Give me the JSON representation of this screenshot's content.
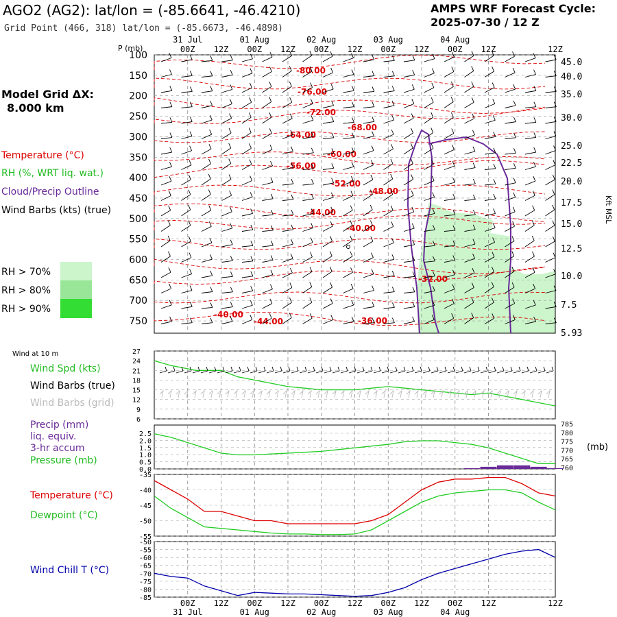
{
  "header": {
    "station": "AGO2 (AG2):  lat/lon = (-85.6641, -46.4210)",
    "grid_point": "Grid Point (466, 318) lat/lon = (-85.6673, -46.4898)",
    "cycle_label": "AMPS WRF Forecast Cycle:",
    "cycle_value": "2025-07-30 / 12  Z"
  },
  "sidebar": {
    "model_grid_label": "Model Grid ΔX:",
    "model_grid_value": "8.000 km",
    "legend_temperature": "Temperature (°C)",
    "legend_rh": "RH (%, WRT liq. wat.)",
    "legend_cloud": "Cloud/Precip Outline",
    "legend_wind": "Wind Barbs (kts) (true)",
    "rh70": "RH > 70%",
    "rh80": "RH > 80%",
    "rh90": "RH > 90%"
  },
  "colors": {
    "temperature": "#dd0000",
    "rh": "#22cc22",
    "cloud": "#6a2a9a",
    "wind": "#000000",
    "grid_barbs": "#bbbbbb",
    "windchill": "#0000aa",
    "rh70": "#ccf5cc",
    "rh80": "#99e699",
    "rh90": "#33dd33"
  },
  "time_axis": {
    "ticks": [
      "00Z",
      "12Z",
      "00Z",
      "12Z",
      "00Z",
      "12Z",
      "00Z",
      "12Z",
      "00Z",
      "12Z"
    ],
    "dates": [
      "31 Jul",
      "01 Aug",
      "02 Aug",
      "03 Aug",
      "04 Aug"
    ],
    "lead_12z_label": "12Z"
  },
  "chart_data": [
    {
      "type": "contour",
      "name": "cross-section",
      "ylabel_left": "P (mb)",
      "ylabel_right": "Kft MSL",
      "pressure_ticks": [
        "100",
        "150",
        "200",
        "250",
        "300",
        "350",
        "400",
        "450",
        "500",
        "550",
        "600",
        "650",
        "700",
        "750"
      ],
      "height_ticks": [
        "45.0",
        "40.0",
        "35.0",
        "30.0",
        "25.0",
        "22.5",
        "20.0",
        "17.5",
        "15.0",
        "12.5",
        "10.0",
        "7.5",
        "5.93"
      ],
      "ylim_mb": [
        100,
        780
      ],
      "temperature_contour_labels": [
        "-80.00",
        "-76.00",
        "-72.00",
        "-68.00",
        "-64.00",
        "-60.00",
        "-56.00",
        "-52.00",
        "-48.00",
        "-44.00",
        "-40.00",
        "-32.00",
        "-40.00",
        "-44.00",
        "-36.00"
      ]
    },
    {
      "type": "line",
      "name": "wind-at-10m",
      "title": "Wind at 10 m",
      "series_labels": [
        "Wind Spd (kts)",
        "Wind Barbs (true)",
        "Wind Barbs (grid)"
      ],
      "yticks": [
        "27",
        "24",
        "21",
        "18",
        "15",
        "12",
        "9",
        "6"
      ],
      "ylim": [
        6,
        27
      ],
      "x_hours": [
        0,
        6,
        12,
        15,
        18,
        24,
        30,
        36,
        42,
        48,
        54,
        60,
        66,
        72,
        78,
        84,
        90,
        96,
        102,
        108,
        114,
        120,
        126,
        132,
        138,
        144
      ],
      "wind_speed": [
        24,
        22.5,
        21.5,
        21,
        21,
        21,
        19,
        18,
        17,
        16,
        15.5,
        15,
        15,
        15,
        15.5,
        16,
        15.5,
        15,
        14.5,
        14,
        13.5,
        14,
        13,
        12,
        11,
        10
      ]
    },
    {
      "type": "line",
      "name": "precip-pressure",
      "series_labels": [
        "Precip (mm)",
        "liq. equiv.",
        "3-hr accum",
        "Pressure (mb)"
      ],
      "yticks_left": [
        "2.5",
        "2.0",
        "1.5",
        "1.0",
        "0.5",
        "0.0"
      ],
      "yticks_right": [
        "785",
        "780",
        "775",
        "770",
        "765",
        "760"
      ],
      "ylabel_right": "(mb)",
      "ylim_left": [
        0,
        2.5
      ],
      "ylim_right": [
        760,
        785
      ],
      "x_hours": [
        0,
        6,
        12,
        18,
        24,
        30,
        36,
        42,
        48,
        54,
        60,
        66,
        72,
        78,
        84,
        90,
        96,
        102,
        108,
        114,
        120,
        126,
        132,
        138,
        144
      ],
      "pressure": [
        780,
        778,
        775,
        772,
        769,
        768,
        768,
        768.5,
        769,
        769.5,
        770,
        771,
        772,
        773,
        774,
        775.5,
        776,
        776,
        775,
        774,
        772,
        769,
        766,
        763,
        763
      ],
      "precip": [
        0,
        0,
        0,
        0,
        0,
        0,
        0,
        0,
        0,
        0,
        0,
        0,
        0,
        0,
        0,
        0,
        0,
        0,
        0,
        0.05,
        0.15,
        0.25,
        0.25,
        0.15,
        0.05
      ]
    },
    {
      "type": "line",
      "name": "temperature-dewpoint",
      "series_labels": [
        "Temperature (°C)",
        "Dewpoint (°C)"
      ],
      "yticks": [
        "-35",
        "-40",
        "-45",
        "-50",
        "-55"
      ],
      "ylim": [
        -55,
        -35
      ],
      "x_hours": [
        0,
        6,
        12,
        18,
        24,
        30,
        36,
        42,
        48,
        54,
        60,
        66,
        72,
        78,
        84,
        90,
        96,
        102,
        108,
        114,
        120,
        126,
        132,
        138,
        144
      ],
      "temperature": [
        -37,
        -40,
        -43,
        -47,
        -47,
        -48.5,
        -50,
        -50,
        -51,
        -51,
        -51,
        -51,
        -51,
        -50,
        -48,
        -44,
        -40,
        -37.5,
        -36.5,
        -36.5,
        -36,
        -36,
        -38,
        -41,
        -42
      ],
      "dewpoint": [
        -42,
        -46,
        -49,
        -52,
        -52.5,
        -53,
        -53.5,
        -54,
        -54.3,
        -54.3,
        -54.5,
        -54.5,
        -54.3,
        -53,
        -50,
        -47,
        -44,
        -42,
        -41,
        -40.5,
        -40,
        -40,
        -41,
        -44,
        -46.5
      ]
    },
    {
      "type": "line",
      "name": "wind-chill",
      "series_labels": [
        "Wind Chill T (°C)"
      ],
      "yticks": [
        "-50",
        "-55",
        "-60",
        "-65",
        "-70",
        "-75",
        "-80",
        "-85"
      ],
      "ylim": [
        -85,
        -50
      ],
      "x_hours": [
        0,
        6,
        12,
        18,
        24,
        30,
        36,
        42,
        48,
        54,
        60,
        66,
        72,
        78,
        84,
        90,
        96,
        102,
        108,
        114,
        120,
        126,
        132,
        138,
        144
      ],
      "windchill": [
        -70,
        -72,
        -73,
        -78,
        -81,
        -84,
        -82,
        -82.5,
        -83,
        -83,
        -83.5,
        -84,
        -84.5,
        -84,
        -82,
        -79,
        -74,
        -70,
        -67,
        -64,
        -61,
        -58,
        -56,
        -55,
        -60
      ]
    }
  ]
}
